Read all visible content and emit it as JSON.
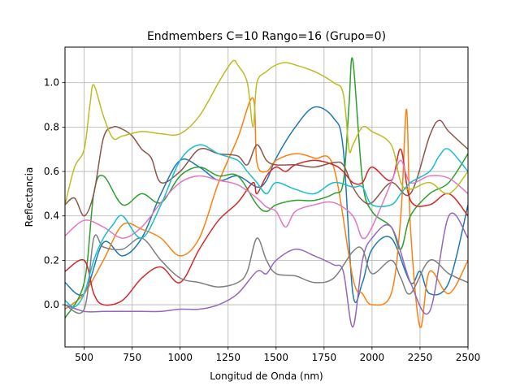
{
  "chart_data": {
    "type": "line",
    "title": "Endmembers C=10 Rango=16 (Grupo=0)",
    "xlabel": "Longitud de Onda (nm)",
    "ylabel": "Reflectancia",
    "xlim": [
      400,
      2500
    ],
    "ylim": [
      -0.19,
      1.16
    ],
    "xticks": [
      500,
      750,
      1000,
      1250,
      1500,
      1750,
      2000,
      2250,
      2500
    ],
    "xtick_labels": [
      "500",
      "750",
      "1000",
      "1250",
      "1500",
      "1750",
      "2000",
      "2250",
      "2500"
    ],
    "yticks": [
      0.0,
      0.2,
      0.4,
      0.6,
      0.8,
      1.0
    ],
    "ytick_labels": [
      "0.0",
      "0.2",
      "0.4",
      "0.6",
      "0.8",
      "1.0"
    ],
    "grid": true,
    "series": [
      {
        "color": "#1f77b4",
        "x": [
          400,
          500,
          600,
          700,
          800,
          900,
          1000,
          1100,
          1200,
          1300,
          1400,
          1450,
          1500,
          1600,
          1700,
          1800,
          1850,
          1900,
          1950,
          2000,
          2100,
          2200,
          2250,
          2300,
          2400,
          2500
        ],
        "y": [
          0.1,
          0.05,
          0.28,
          0.22,
          0.3,
          0.5,
          0.65,
          0.62,
          0.56,
          0.58,
          0.53,
          0.56,
          0.66,
          0.8,
          0.89,
          0.84,
          0.7,
          0.05,
          0.1,
          0.25,
          0.3,
          0.1,
          0.15,
          0.05,
          0.1,
          0.45
        ]
      },
      {
        "color": "#ff7f0e",
        "x": [
          400,
          500,
          600,
          700,
          800,
          900,
          1000,
          1100,
          1200,
          1300,
          1380,
          1400,
          1450,
          1500,
          1600,
          1700,
          1800,
          1900,
          1950,
          2000,
          2100,
          2150,
          2180,
          2200,
          2250,
          2300,
          2400,
          2500
        ],
        "y": [
          -0.02,
          0.05,
          0.2,
          0.36,
          0.34,
          0.3,
          0.22,
          0.3,
          0.55,
          0.75,
          0.93,
          0.64,
          0.6,
          0.65,
          0.68,
          0.66,
          0.62,
          0.12,
          0.05,
          0.0,
          0.05,
          0.4,
          0.88,
          0.35,
          -0.1,
          0.15,
          0.05,
          0.2
        ]
      },
      {
        "color": "#2ca02c",
        "x": [
          400,
          500,
          550,
          600,
          700,
          800,
          900,
          1000,
          1100,
          1200,
          1300,
          1400,
          1450,
          1500,
          1600,
          1700,
          1800,
          1850,
          1880,
          1900,
          1950,
          2000,
          2100,
          2150,
          2200,
          2300,
          2400,
          2500
        ],
        "y": [
          -0.06,
          0.1,
          0.5,
          0.58,
          0.45,
          0.5,
          0.46,
          0.58,
          0.62,
          0.58,
          0.58,
          0.45,
          0.42,
          0.45,
          0.47,
          0.47,
          0.5,
          0.55,
          0.9,
          1.1,
          0.56,
          0.42,
          0.35,
          0.25,
          0.4,
          0.5,
          0.55,
          0.68
        ]
      },
      {
        "color": "#d62728",
        "x": [
          400,
          500,
          550,
          600,
          700,
          800,
          900,
          1000,
          1100,
          1200,
          1300,
          1380,
          1400,
          1450,
          1500,
          1550,
          1600,
          1700,
          1800,
          1850,
          1900,
          1950,
          2000,
          2100,
          2150,
          2200,
          2300,
          2400,
          2500
        ],
        "y": [
          0.15,
          0.2,
          0.05,
          0.0,
          0.02,
          0.12,
          0.17,
          0.1,
          0.25,
          0.38,
          0.46,
          0.55,
          0.5,
          0.58,
          0.62,
          0.6,
          0.63,
          0.65,
          0.63,
          0.6,
          0.55,
          0.55,
          0.62,
          0.56,
          0.7,
          0.47,
          0.45,
          0.5,
          0.4
        ]
      },
      {
        "color": "#9467bd",
        "x": [
          400,
          500,
          600,
          700,
          800,
          900,
          1000,
          1100,
          1200,
          1300,
          1400,
          1450,
          1500,
          1600,
          1700,
          1800,
          1850,
          1900,
          1950,
          2000,
          2100,
          2200,
          2300,
          2400,
          2500
        ],
        "y": [
          0.0,
          -0.03,
          -0.03,
          -0.03,
          -0.03,
          -0.03,
          -0.02,
          -0.02,
          0.0,
          0.05,
          0.15,
          0.14,
          0.2,
          0.25,
          0.22,
          0.18,
          0.15,
          -0.1,
          0.2,
          0.3,
          0.35,
          0.1,
          -0.03,
          0.4,
          0.3
        ]
      },
      {
        "color": "#8c564b",
        "x": [
          400,
          450,
          500,
          550,
          600,
          650,
          700,
          750,
          800,
          850,
          900,
          1000,
          1100,
          1200,
          1300,
          1350,
          1400,
          1450,
          1500,
          1600,
          1700,
          1800,
          1850,
          1900,
          1950,
          2000,
          2100,
          2200,
          2300,
          2350,
          2400,
          2500
        ],
        "y": [
          0.45,
          0.48,
          0.4,
          0.5,
          0.75,
          0.8,
          0.79,
          0.76,
          0.7,
          0.66,
          0.55,
          0.6,
          0.7,
          0.68,
          0.67,
          0.63,
          0.72,
          0.65,
          0.63,
          0.63,
          0.62,
          0.64,
          0.63,
          0.53,
          0.47,
          0.46,
          0.55,
          0.5,
          0.76,
          0.83,
          0.78,
          0.7
        ]
      },
      {
        "color": "#e377c2",
        "x": [
          400,
          500,
          600,
          700,
          800,
          900,
          1000,
          1100,
          1200,
          1300,
          1400,
          1450,
          1500,
          1550,
          1600,
          1700,
          1800,
          1900,
          1950,
          2000,
          2100,
          2150,
          2200,
          2300,
          2400,
          2500
        ],
        "y": [
          0.31,
          0.38,
          0.35,
          0.3,
          0.35,
          0.46,
          0.55,
          0.58,
          0.56,
          0.54,
          0.48,
          0.44,
          0.42,
          0.35,
          0.42,
          0.45,
          0.46,
          0.4,
          0.3,
          0.35,
          0.55,
          0.65,
          0.55,
          0.58,
          0.57,
          0.5
        ]
      },
      {
        "color": "#7f7f7f",
        "x": [
          400,
          500,
          550,
          600,
          700,
          800,
          900,
          1000,
          1100,
          1200,
          1300,
          1350,
          1400,
          1450,
          1500,
          1600,
          1700,
          1800,
          1900,
          1950,
          2000,
          2100,
          2150,
          2200,
          2300,
          2400,
          2500
        ],
        "y": [
          0.0,
          -0.02,
          0.3,
          0.26,
          0.25,
          0.3,
          0.2,
          0.12,
          0.1,
          0.08,
          0.1,
          0.15,
          0.3,
          0.2,
          0.14,
          0.13,
          0.1,
          0.12,
          0.24,
          0.25,
          0.14,
          0.2,
          0.12,
          0.05,
          0.2,
          0.14,
          0.1
        ]
      },
      {
        "color": "#bcbd22",
        "x": [
          400,
          450,
          500,
          530,
          550,
          600,
          650,
          700,
          800,
          900,
          1000,
          1100,
          1200,
          1250,
          1280,
          1300,
          1350,
          1380,
          1400,
          1450,
          1500,
          1550,
          1600,
          1700,
          1800,
          1850,
          1880,
          1900,
          1950,
          2000,
          2100,
          2150,
          2200,
          2300,
          2400,
          2500
        ],
        "y": [
          0.45,
          0.62,
          0.7,
          0.9,
          0.99,
          0.85,
          0.75,
          0.76,
          0.78,
          0.77,
          0.77,
          0.85,
          1.0,
          1.07,
          1.1,
          1.08,
          1.0,
          0.8,
          1.0,
          1.05,
          1.08,
          1.09,
          1.08,
          1.05,
          1.0,
          0.95,
          0.7,
          0.72,
          0.8,
          0.78,
          0.72,
          0.55,
          0.52,
          0.55,
          0.5,
          0.6
        ]
      },
      {
        "color": "#17becf",
        "x": [
          400,
          450,
          500,
          550,
          600,
          650,
          700,
          800,
          900,
          1000,
          1100,
          1200,
          1300,
          1350,
          1400,
          1450,
          1500,
          1600,
          1700,
          1800,
          1900,
          1950,
          2000,
          2100,
          2150,
          2200,
          2300,
          2350,
          2400,
          2500
        ],
        "y": [
          0.02,
          -0.01,
          0.05,
          0.2,
          0.3,
          0.36,
          0.4,
          0.3,
          0.45,
          0.65,
          0.72,
          0.68,
          0.65,
          0.6,
          0.55,
          0.5,
          0.55,
          0.52,
          0.5,
          0.55,
          0.53,
          0.53,
          0.45,
          0.45,
          0.5,
          0.55,
          0.6,
          0.67,
          0.7,
          0.6
        ]
      }
    ]
  }
}
